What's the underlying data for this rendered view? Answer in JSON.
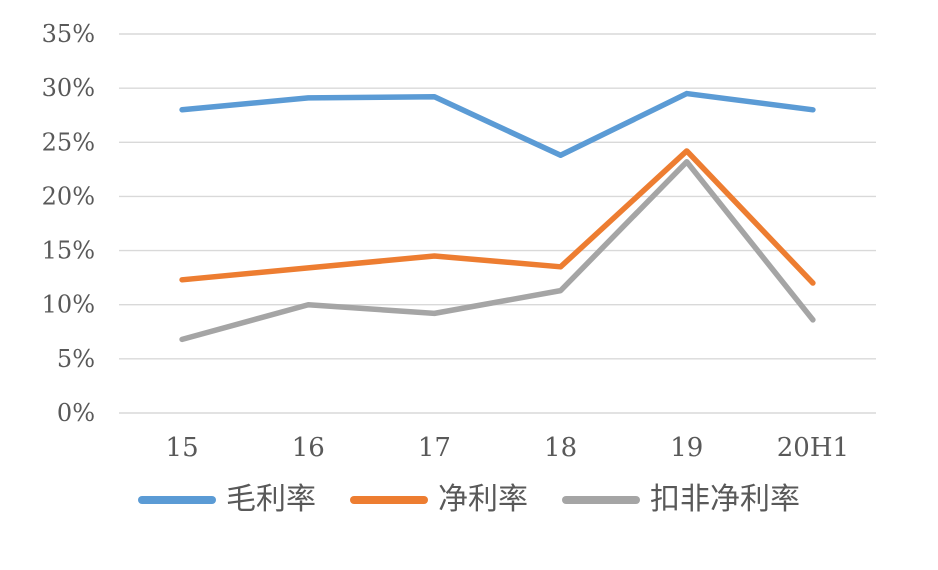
{
  "chart_data": {
    "type": "line",
    "title": "",
    "xlabel": "",
    "ylabel": "",
    "categories": [
      "15",
      "16",
      "17",
      "18",
      "19",
      "20H1"
    ],
    "series": [
      {
        "name": "毛利率",
        "slug": "gross-margin",
        "color": "#5B9BD5",
        "values": [
          28.0,
          29.1,
          29.2,
          23.8,
          29.5,
          28.0
        ]
      },
      {
        "name": "净利率",
        "slug": "net-margin",
        "color": "#ED7D31",
        "values": [
          12.3,
          13.4,
          14.5,
          13.5,
          24.2,
          12.0
        ]
      },
      {
        "name": "扣非净利率",
        "slug": "non-gaap-net-margin",
        "color": "#A5A5A5",
        "values": [
          6.8,
          10.0,
          9.2,
          11.3,
          23.2,
          8.6
        ]
      }
    ],
    "ylim": [
      0,
      35
    ],
    "y_tick_step": 5,
    "y_tick_labels": [
      "0%",
      "5%",
      "10%",
      "15%",
      "20%",
      "25%",
      "30%",
      "35%"
    ],
    "grid": "horizontal-only",
    "legend_position": "bottom",
    "colors": {
      "gridline": "#D9D9D9",
      "tick_label": "#595959",
      "background": "#FFFFFF"
    }
  }
}
